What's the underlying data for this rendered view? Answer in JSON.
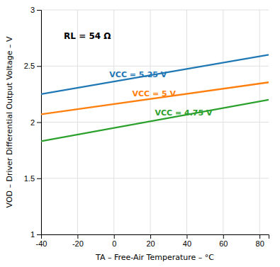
{
  "chart_data": {
    "type": "line",
    "xlabel": "TA – Free-Air Temperature – °C",
    "ylabel": "VOD – Driver Differential Output Voltage – V",
    "annotations": [
      "RL = 54 Ω"
    ],
    "x": [
      -40,
      85
    ],
    "series": [
      {
        "name": "VCC = 5.25 V",
        "values": [
          2.25,
          2.6
        ]
      },
      {
        "name": "VCC = 5 V",
        "values": [
          2.07,
          2.355
        ]
      },
      {
        "name": "VCC = 4.75 V",
        "values": [
          1.83,
          2.2
        ]
      }
    ],
    "xlim": [
      -40,
      85
    ],
    "ylim": [
      1.0,
      3.0
    ],
    "xticks": [
      -40,
      -20,
      0,
      20,
      40,
      60,
      80
    ],
    "yticks": [
      1,
      1.5,
      2,
      2.5,
      3
    ],
    "grid": true
  }
}
